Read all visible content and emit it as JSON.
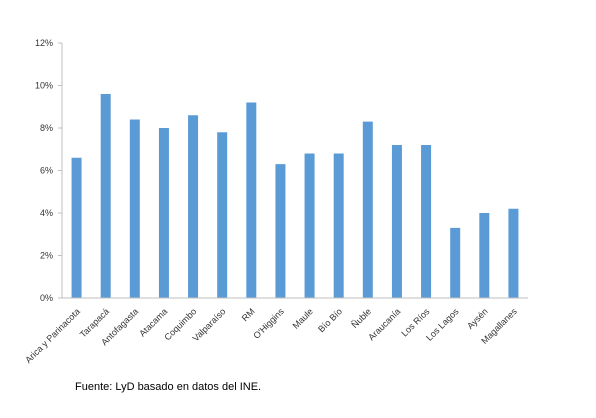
{
  "chart_data": {
    "type": "bar",
    "categories": [
      "Arica y Parinacota",
      "Tarapacá",
      "Antofagasta",
      "Atacama",
      "Coquimbo",
      "Valparaíso",
      "RM",
      "O'Higgins",
      "Maule",
      "Bío Bío",
      "Ñuble",
      "Araucanía",
      "Los Ríos",
      "Los Lagos",
      "Aysén",
      "Magallanes"
    ],
    "values": [
      6.6,
      9.6,
      8.4,
      8.0,
      8.6,
      7.8,
      9.2,
      6.3,
      6.8,
      6.8,
      8.3,
      7.2,
      7.2,
      3.3,
      4.0,
      4.2
    ],
    "ylim": [
      0,
      12
    ],
    "yticks": [
      0,
      2,
      4,
      6,
      8,
      10,
      12
    ],
    "ytick_labels": [
      "0%",
      "2%",
      "4%",
      "6%",
      "8%",
      "10%",
      "12%"
    ],
    "title": "",
    "xlabel": "",
    "ylabel": "",
    "grid": false,
    "legend": "none",
    "bar_color": "#5B9BD5",
    "axis_color": "#BFBFBF"
  },
  "source_note": "Fuente: LyD basado en datos del INE."
}
